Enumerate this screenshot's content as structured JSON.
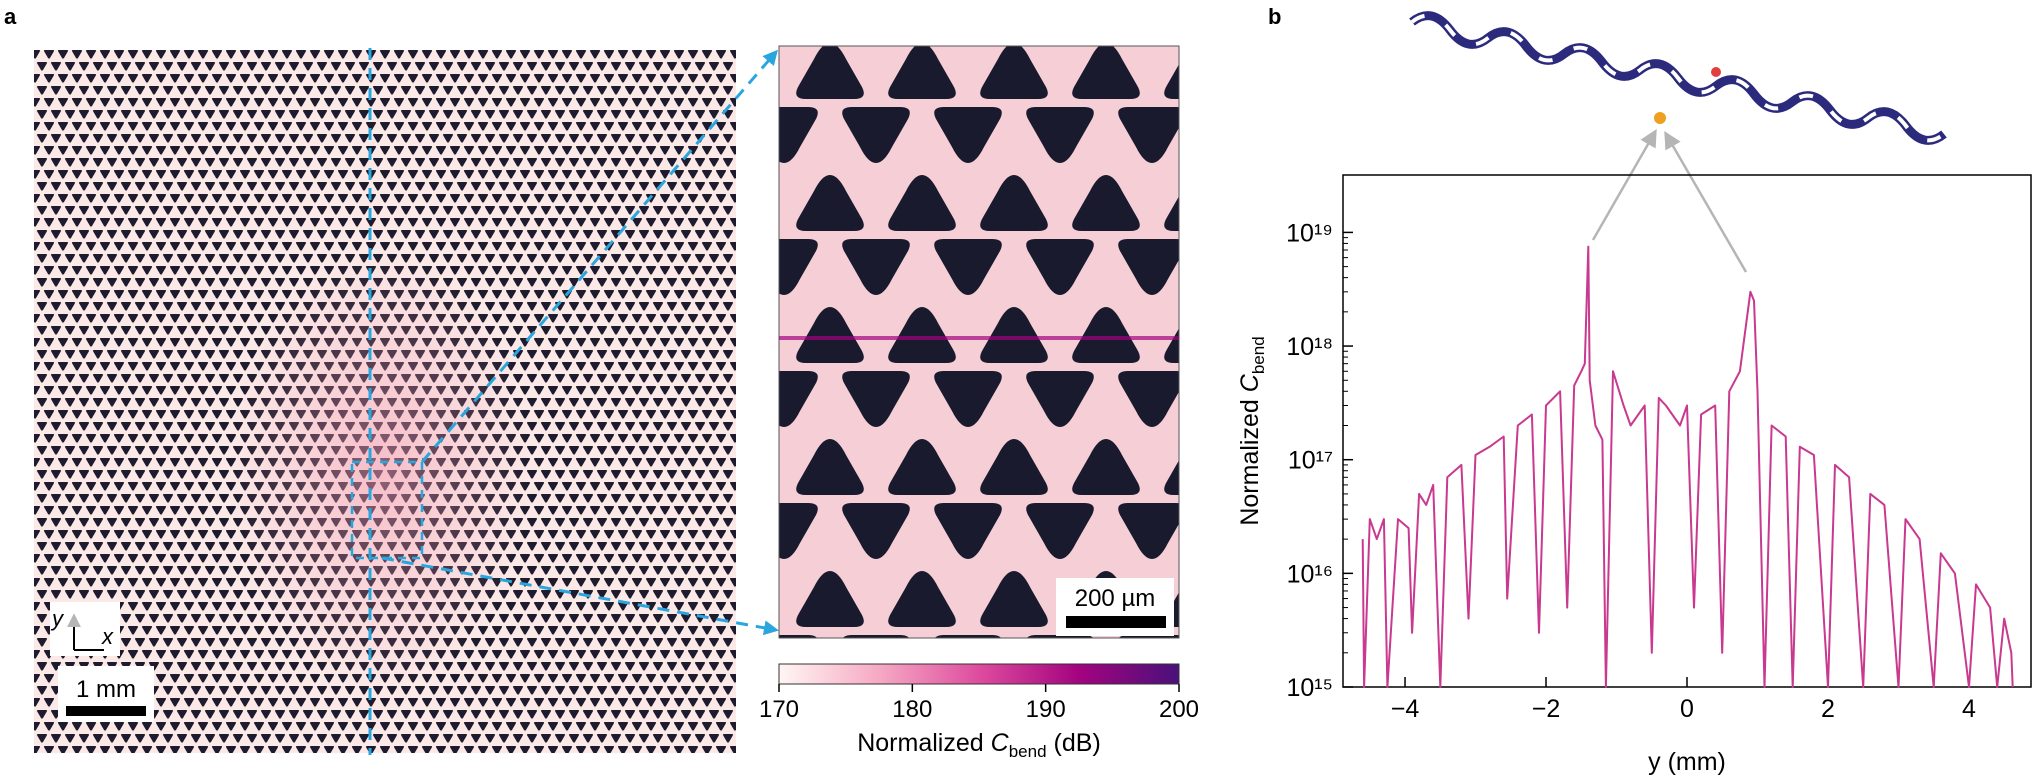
{
  "panel_labels": {
    "a": "a",
    "b": "b"
  },
  "panel_a": {
    "axes": {
      "y": "y",
      "x": "x"
    },
    "scale_bar": "1 mm",
    "inset_scale_bar": "200 µm",
    "colorbar": {
      "label": {
        "prefix": "Normalized",
        "symbol": "C",
        "subscript": "bend",
        "suffix": "(dB)"
      },
      "lim": [
        170,
        200
      ],
      "ticks": [
        170,
        180,
        190,
        200
      ],
      "colors": [
        "#fff6f3",
        "#f6a9c4",
        "#de4c9e",
        "#a3037f",
        "#4a117a"
      ]
    }
  },
  "chart_data": {
    "type": "line",
    "xlabel": "y (mm)",
    "ylabel": {
      "prefix": "Normalized",
      "symbol": "C",
      "subscript": "bend"
    },
    "log_y": true,
    "xlim": [
      -4.88,
      4.88
    ],
    "ylim": [
      1000000000000000.0,
      3.2e+19
    ],
    "xticks": [
      {
        "value": -4,
        "label": "−4"
      },
      {
        "value": -2,
        "label": "−2"
      },
      0,
      2,
      4
    ],
    "yticks": [
      {
        "value": 1000000000000000.0,
        "label": "10¹⁵"
      },
      {
        "value": 1e+16,
        "label": "10¹⁶"
      },
      {
        "value": 1e+17,
        "label": "10¹⁷"
      },
      {
        "value": 1e+18,
        "label": "10¹⁸"
      },
      {
        "value": 1e+19,
        "label": "10¹⁹"
      }
    ],
    "x": [
      -4.6,
      -4.58,
      -4.5,
      -4.4,
      -4.3,
      -4.25,
      -4.1,
      -3.95,
      -3.9,
      -3.8,
      -3.7,
      -3.6,
      -3.5,
      -3.4,
      -3.2,
      -3.1,
      -3.0,
      -2.8,
      -2.6,
      -2.55,
      -2.4,
      -2.2,
      -2.1,
      -2.0,
      -1.8,
      -1.7,
      -1.6,
      -1.5,
      -1.45,
      -1.4,
      -1.38,
      -1.3,
      -1.2,
      -1.15,
      -1.05,
      -0.9,
      -0.8,
      -0.6,
      -0.5,
      -0.4,
      -0.3,
      -0.1,
      0.0,
      0.1,
      0.2,
      0.4,
      0.5,
      0.6,
      0.75,
      0.9,
      0.95,
      1.0,
      1.1,
      1.2,
      1.4,
      1.5,
      1.6,
      1.8,
      2.0,
      2.1,
      2.3,
      2.5,
      2.6,
      2.8,
      3.0,
      3.1,
      3.3,
      3.5,
      3.6,
      3.8,
      4.0,
      4.1,
      4.3,
      4.4,
      4.5,
      4.6,
      4.62
    ],
    "series": [
      {
        "color": "#c8398f",
        "values": [
          2e+16,
          1000000000000000.0,
          3e+16,
          2e+16,
          3e+16,
          1000000000000000.0,
          3e+16,
          2.5e+16,
          3000000000000000.0,
          5e+16,
          4e+16,
          6e+16,
          1000000000000000.0,
          7e+16,
          9e+16,
          4000000000000000.0,
          1.1e+17,
          1.3e+17,
          1.6e+17,
          6000000000000000.0,
          2e+17,
          2.5e+17,
          3000000000000000.0,
          3e+17,
          4e+17,
          5000000000000000.0,
          4.5e+17,
          6e+17,
          7e+17,
          7.5e+18,
          5e+17,
          2e+17,
          1.5e+17,
          1000000000000000.0,
          6e+17,
          3e+17,
          2e+17,
          3e+17,
          2000000000000000.0,
          3.5e+17,
          3e+17,
          2e+17,
          3e+17,
          5000000000000000.0,
          2.5e+17,
          3e+17,
          2000000000000000.0,
          4e+17,
          6e+17,
          3e+18,
          2.5e+18,
          4e+17,
          1000000000000000.0,
          2e+17,
          1.6e+17,
          1000000000000000.0,
          1.3e+17,
          1.1e+17,
          1000000000000000.0,
          9e+16,
          7e+16,
          1000000000000000.0,
          5e+16,
          4e+16,
          1000000000000000.0,
          3e+16,
          2e+16,
          1000000000000000.0,
          1.5e+16,
          1e+16,
          1000000000000000.0,
          8000000000000000.0,
          5000000000000000.0,
          1000000000000000.0,
          4000000000000000.0,
          2000000000000000.0,
          1000000000000000.0
        ]
      }
    ]
  }
}
